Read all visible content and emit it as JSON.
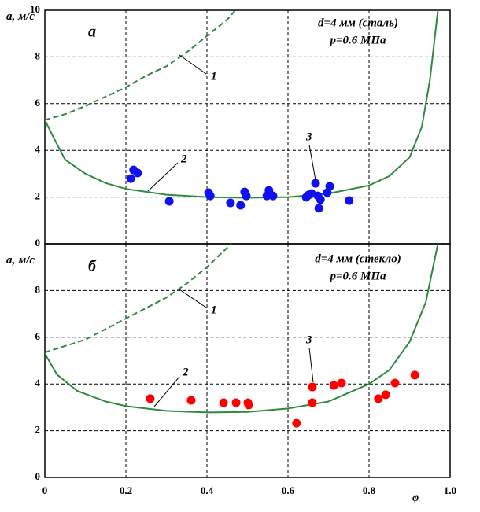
{
  "chart_data": [
    {
      "type": "line",
      "ylabel": "a, м/с",
      "xlim": [
        0,
        1
      ],
      "ylim": [
        0,
        10
      ],
      "yticks": [
        0,
        2,
        4,
        6,
        8,
        10
      ],
      "grid": true,
      "annotations": [
        "а",
        "d=4 мм (сталь)",
        "p=0.6 МПа",
        "1",
        "2",
        "3"
      ],
      "series": [
        {
          "style": "dashed",
          "color": "#2e8b3e",
          "x": [
            0,
            0.05,
            0.1,
            0.15,
            0.2,
            0.25,
            0.3,
            0.35,
            0.4,
            0.45,
            0.47
          ],
          "values": [
            5.3,
            5.55,
            5.9,
            6.3,
            6.7,
            7.2,
            7.6,
            8.2,
            8.9,
            9.6,
            10
          ]
        },
        {
          "style": "solid",
          "color": "#2e8b3e",
          "x": [
            0,
            0.02,
            0.05,
            0.1,
            0.15,
            0.2,
            0.3,
            0.4,
            0.5,
            0.6,
            0.7,
            0.8,
            0.85,
            0.9,
            0.93,
            0.95,
            0.97
          ],
          "values": [
            5.3,
            4.6,
            3.6,
            3.0,
            2.6,
            2.35,
            2.1,
            2.0,
            1.97,
            2.0,
            2.15,
            2.5,
            2.9,
            3.7,
            5.0,
            7.0,
            10
          ]
        },
        {
          "style": "markers",
          "color": "#1010f0",
          "x": [
            0.212,
            0.219,
            0.229,
            0.307,
            0.404,
            0.408,
            0.458,
            0.483,
            0.493,
            0.497,
            0.548,
            0.553,
            0.563,
            0.645,
            0.651,
            0.658,
            0.668,
            0.674,
            0.68,
            0.676,
            0.697,
            0.703,
            0.751
          ],
          "values": [
            2.79,
            3.16,
            3.03,
            1.82,
            2.19,
            2.05,
            1.75,
            1.65,
            2.22,
            2.05,
            2.05,
            2.29,
            2.05,
            1.99,
            2.09,
            2.15,
            2.59,
            2.05,
            1.89,
            1.52,
            2.19,
            2.46,
            1.85
          ]
        }
      ]
    },
    {
      "type": "line",
      "ylabel": "a, м/с",
      "xlabel": "φ",
      "xlim": [
        0,
        1
      ],
      "xticks": [
        0,
        0.2,
        0.4,
        0.6,
        0.8,
        {
          "value": 1,
          "label": "1.0"
        }
      ],
      "ylim": [
        0,
        10
      ],
      "yticks": [
        0,
        2,
        4,
        6,
        8
      ],
      "grid": true,
      "annotations": [
        "б",
        "d=4 мм (стекло)",
        "p=0.6 МПа",
        "1",
        "2",
        "3"
      ],
      "series": [
        {
          "style": "dashed",
          "color": "#2e8b3e",
          "x": [
            0,
            0.1,
            0.2,
            0.3,
            0.35,
            0.4,
            0.46
          ],
          "values": [
            5.35,
            5.9,
            6.8,
            7.7,
            8.3,
            9.0,
            10
          ]
        },
        {
          "style": "solid",
          "color": "#2e8b3e",
          "x": [
            0,
            0.03,
            0.08,
            0.15,
            0.2,
            0.3,
            0.4,
            0.5,
            0.6,
            0.7,
            0.8,
            0.85,
            0.9,
            0.94,
            0.97
          ],
          "values": [
            5.3,
            4.4,
            3.7,
            3.25,
            3.05,
            2.85,
            2.78,
            2.8,
            2.95,
            3.25,
            4.0,
            4.6,
            5.8,
            7.5,
            10
          ]
        },
        {
          "style": "markers",
          "color": "#ff0000",
          "x": [
            0.26,
            0.361,
            0.441,
            0.472,
            0.501,
            0.503,
            0.621,
            0.66,
            0.66,
            0.713,
            0.732,
            0.823,
            0.841,
            0.864,
            0.913
          ],
          "values": [
            3.37,
            3.3,
            3.2,
            3.2,
            3.2,
            3.1,
            2.32,
            3.87,
            3.2,
            3.94,
            4.04,
            3.37,
            3.54,
            4.04,
            4.38
          ]
        }
      ]
    }
  ]
}
